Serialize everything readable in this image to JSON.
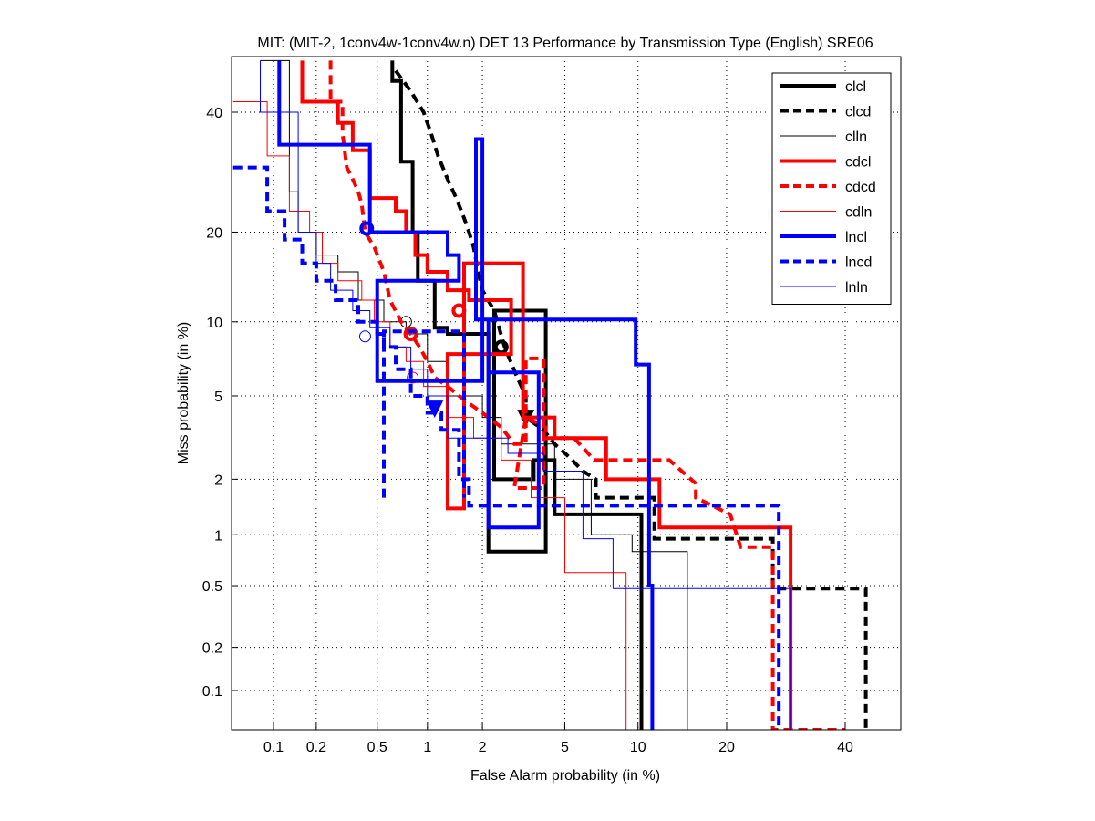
{
  "chart_data": {
    "type": "line",
    "scale": "det-probit",
    "title": "MIT: (MIT-2, 1conv4w-1conv4w.n) DET 13 Performance by Transmission Type (English) SRE06",
    "xlabel": "False Alarm probability (in %)",
    "ylabel": "Miss probability (in %)",
    "xlim": [
      0.05,
      60
    ],
    "ylim": [
      0.05,
      50
    ],
    "xticks": [
      0.1,
      0.2,
      0.5,
      1,
      2,
      5,
      10,
      20,
      40
    ],
    "xtick_labels": [
      "0.1",
      "0.2",
      "0.5",
      "1",
      "2",
      "5",
      "10",
      "20",
      "40"
    ],
    "yticks": [
      0.1,
      0.2,
      0.5,
      1,
      2,
      5,
      10,
      20,
      40
    ],
    "ytick_labels": [
      "0.1",
      "0.2",
      "0.5",
      "1",
      "2",
      "5",
      "10",
      "20",
      "40"
    ],
    "grid": true,
    "legend_position": "top-right",
    "series": [
      {
        "name": "clcl",
        "color": "#000000",
        "style": "solid",
        "weight": "thick",
        "x": [
          0.62,
          0.62,
          0.7,
          0.7,
          0.82,
          0.82,
          0.88,
          0.88,
          1.1,
          1.1,
          1.3,
          1.3,
          2.15,
          2.15,
          4.1,
          4.1,
          2.3,
          2.3,
          3.6,
          3.6,
          4.5,
          4.5,
          6.8,
          6.8,
          10.3,
          10.3
        ],
        "y": [
          50,
          46,
          46,
          31,
          31,
          20,
          20,
          14,
          14,
          9.5,
          9.5,
          9.0,
          9.0,
          0.8,
          0.8,
          11,
          11,
          2.0,
          2.0,
          2.5,
          2.5,
          1.3,
          1.3,
          1.3,
          1.3,
          0.05
        ],
        "marker": {
          "x": 2.5,
          "y": 8.0,
          "shape": "circle"
        }
      },
      {
        "name": "clcd",
        "color": "#000000",
        "style": "dashed",
        "weight": "thick",
        "x": [
          0.65,
          0.8,
          0.95,
          1.05,
          1.15,
          1.3,
          1.45,
          1.6,
          1.7,
          1.8,
          1.9,
          2.0,
          2.3,
          2.6,
          3.0,
          3.3,
          3.3,
          4.0,
          4.5,
          5.2,
          6.0,
          6.8,
          6.8,
          8.0,
          10.0,
          11.5,
          11.5,
          27.0,
          27.0,
          44.0,
          44.0
        ],
        "y": [
          48,
          44,
          40,
          36,
          32,
          28,
          25,
          22,
          20,
          18,
          15,
          13,
          11,
          8,
          6,
          5,
          4,
          3.5,
          3.0,
          2.6,
          2.2,
          2.0,
          1.6,
          1.6,
          1.6,
          1.6,
          0.95,
          0.95,
          0.48,
          0.48,
          0.05
        ],
        "marker": {
          "x": 3.3,
          "y": 4.0,
          "shape": "triangle-down"
        }
      },
      {
        "name": "clln",
        "color": "#000000",
        "style": "solid",
        "weight": "thin",
        "x": [
          0.08,
          0.13,
          0.13,
          0.15,
          0.15,
          0.2,
          0.2,
          0.28,
          0.28,
          0.38,
          0.38,
          0.55,
          0.55,
          0.75,
          0.75,
          1.0,
          1.0,
          1.3,
          1.3,
          2.0,
          2.0,
          2.5,
          2.5,
          4.5,
          4.5,
          6.5,
          6.5,
          9.5,
          9.5,
          15.0,
          15.0
        ],
        "y": [
          50,
          50,
          26,
          26,
          20,
          20,
          17,
          17,
          15,
          15,
          12,
          12,
          10,
          10,
          9.0,
          9.0,
          7.0,
          7.0,
          5.0,
          5.0,
          4.0,
          4.0,
          3.0,
          3.0,
          2.0,
          2.0,
          1.0,
          1.0,
          0.8,
          0.8,
          0.05
        ],
        "marker": {
          "x": 0.75,
          "y": 10,
          "shape": "circle-open"
        }
      },
      {
        "name": "cdcl",
        "color": "#ff0000",
        "style": "solid",
        "weight": "thick",
        "x": [
          0.16,
          0.16,
          0.28,
          0.28,
          0.35,
          0.35,
          0.45,
          0.45,
          0.65,
          0.65,
          0.75,
          0.75,
          0.85,
          0.85,
          1.0,
          1.0,
          1.3,
          1.3,
          1.7,
          1.7,
          2.8,
          2.8,
          1.3,
          1.3,
          1.6,
          1.6,
          3.2,
          3.2,
          4.5,
          4.5,
          7.5,
          7.5,
          12.0,
          12.0,
          30.0,
          30.0
        ],
        "y": [
          50,
          42,
          42,
          38,
          38,
          33,
          33,
          25,
          25,
          23,
          23,
          20,
          20,
          17,
          17,
          15,
          15,
          13,
          13,
          12,
          12,
          7.5,
          7.5,
          1.4,
          1.4,
          16,
          16,
          4.0,
          4.0,
          3.2,
          3.2,
          2.0,
          2.0,
          1.1,
          1.1,
          0.05
        ],
        "marker": {
          "x": 1.5,
          "y": 11,
          "shape": "circle"
        }
      },
      {
        "name": "cdcd",
        "color": "#ff0000",
        "style": "dashed",
        "weight": "thick",
        "x": [
          0.25,
          0.25,
          0.3,
          0.3,
          0.32,
          0.35,
          0.38,
          0.4,
          0.42,
          0.48,
          0.55,
          0.6,
          0.7,
          0.8,
          0.9,
          1.0,
          1.1,
          1.3,
          1.6,
          2.0,
          2.5,
          2.9,
          3.3,
          3.3,
          4.0,
          4.0,
          2.9,
          3.3,
          4.1,
          4.1,
          5.5,
          6.7,
          6.7,
          9.5,
          13.0,
          16.0,
          16.0,
          20.5,
          22.0,
          27.0,
          27.0,
          40.0,
          40.0
        ],
        "y": [
          50,
          42,
          42,
          36,
          30,
          28,
          26,
          24,
          20,
          18,
          15,
          12,
          10,
          9,
          8,
          7,
          6,
          5.5,
          4.8,
          4.2,
          3.6,
          3.0,
          3.0,
          7.2,
          7.2,
          1.8,
          1.8,
          4.0,
          3.6,
          3.2,
          3.2,
          2.5,
          2.5,
          2.5,
          2.5,
          1.9,
          1.6,
          1.3,
          0.85,
          0.85,
          0.05,
          0.05,
          0.05
        ],
        "marker": {
          "x": 0.8,
          "y": 9.0,
          "shape": "circle"
        }
      },
      {
        "name": "cdln",
        "color": "#ff0000",
        "style": "solid",
        "weight": "thin",
        "x": [
          0.05,
          0.09,
          0.09,
          0.13,
          0.13,
          0.18,
          0.18,
          0.22,
          0.22,
          0.28,
          0.28,
          0.4,
          0.4,
          0.48,
          0.48,
          0.6,
          0.6,
          0.75,
          0.75,
          0.95,
          0.95,
          1.3,
          1.3,
          1.8,
          1.8,
          2.5,
          2.5,
          3.5,
          3.5,
          5.0,
          5.0,
          9.0,
          9.0
        ],
        "y": [
          42,
          42,
          32,
          32,
          23,
          23,
          20,
          20,
          16,
          16,
          14,
          14,
          12,
          12,
          10,
          10,
          8,
          8,
          7,
          7,
          5.5,
          5.5,
          4,
          4,
          3.2,
          3.2,
          2.5,
          2.5,
          1.6,
          1.6,
          0.6,
          0.6,
          0.05
        ],
        "marker": {
          "x": 0.82,
          "y": 6.0,
          "shape": "circle-open"
        }
      },
      {
        "name": "lncl",
        "color": "#0000ff",
        "style": "solid",
        "weight": "thick",
        "x": [
          0.11,
          0.11,
          0.45,
          0.45,
          1.3,
          1.3,
          1.5,
          1.5,
          0.5,
          0.5,
          2.0,
          2.0,
          1.85,
          1.85,
          2.15,
          2.15,
          3.8,
          3.8,
          2.15,
          2.15,
          9.8,
          9.8,
          11.0,
          11.0,
          11.3,
          11.3
        ],
        "y": [
          50,
          34,
          34,
          20,
          20,
          17,
          17,
          14,
          14,
          5.8,
          5.8,
          35,
          35,
          10.2,
          10.2,
          1.1,
          1.1,
          6.3,
          6.3,
          10.2,
          10.2,
          6.8,
          6.8,
          0.5,
          0.5,
          0.05
        ],
        "marker": {
          "x": 0.43,
          "y": 20.5,
          "shape": "circle"
        }
      },
      {
        "name": "lncd",
        "color": "#0000ff",
        "style": "dashed",
        "weight": "thick",
        "x": [
          0.05,
          0.09,
          0.09,
          0.12,
          0.12,
          0.16,
          0.16,
          0.2,
          0.2,
          0.27,
          0.27,
          0.38,
          0.38,
          0.5,
          0.5,
          0.55,
          0.55,
          0.65,
          0.65,
          0.8,
          0.8,
          1.0,
          1.0,
          1.2,
          1.2,
          1.5,
          1.5,
          1.7,
          1.7,
          28.0,
          28.0
        ],
        "y": [
          30,
          30,
          23,
          23,
          19,
          19,
          16,
          16,
          14,
          14,
          12,
          12,
          10,
          10,
          9,
          9,
          8,
          8,
          6.5,
          6.5,
          5,
          5,
          4.2,
          4.2,
          3.5,
          3.5,
          2.0,
          2.0,
          1.45,
          1.45,
          0.05
        ],
        "extra_segment": {
          "x": [
            0.55,
            0.55,
            1.6,
            1.6
          ],
          "y": [
            1.6,
            9.2,
            9.2,
            1.6
          ]
        },
        "marker": {
          "x": 1.1,
          "y": 4.4,
          "shape": "triangle-down"
        }
      },
      {
        "name": "lnln",
        "color": "#0000ff",
        "style": "solid",
        "weight": "thin",
        "x": [
          0.08,
          0.08,
          0.09,
          0.09,
          0.15,
          0.15,
          0.2,
          0.2,
          0.25,
          0.25,
          0.35,
          0.35,
          0.45,
          0.45,
          0.6,
          0.6,
          0.8,
          0.8,
          1.0,
          1.0,
          1.3,
          1.3,
          2.7,
          2.7,
          4.0,
          4.0,
          6.0,
          6.0,
          8.0,
          8.0,
          25.0,
          25.0,
          30.0,
          30.0
        ],
        "y": [
          50,
          40,
          40,
          40,
          40,
          20,
          20,
          16,
          16,
          13,
          13,
          11,
          11,
          9.5,
          9.5,
          8,
          8,
          6.5,
          6.5,
          5,
          5,
          3.2,
          3.2,
          2.7,
          2.7,
          2.2,
          2.2,
          0.95,
          0.95,
          0.48,
          0.48,
          0.48,
          0.48,
          0.05
        ],
        "marker": {
          "x": 0.42,
          "y": 8.8,
          "shape": "circle-open"
        }
      }
    ],
    "legend": [
      "clcl",
      "clcd",
      "clln",
      "cdcl",
      "cdcd",
      "cdln",
      "lncl",
      "lncd",
      "lnln"
    ]
  }
}
